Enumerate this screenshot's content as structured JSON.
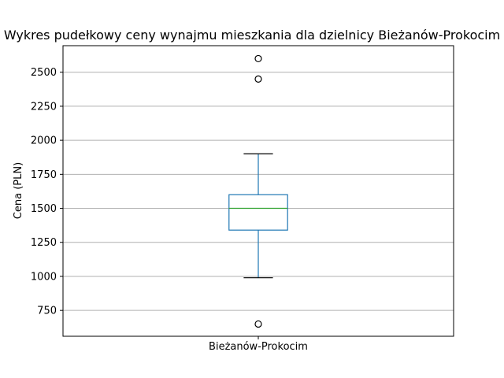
{
  "chart_data": {
    "type": "box",
    "title": "Wykres pudełkowy ceny wynajmu mieszkania dla dzielnicy  Bieżanów-Prokocim",
    "xlabel": "",
    "ylabel": "Cena (PLN)",
    "categories": [
      "Bieżanów-Prokocim"
    ],
    "boxes": [
      {
        "category": "Bieżanów-Prokocim",
        "whisker_low": 990,
        "q1": 1340,
        "median": 1500,
        "q3": 1600,
        "whisker_high": 1900,
        "outliers": [
          650,
          2450,
          2600
        ]
      }
    ],
    "ylim": [
      560,
      2695
    ],
    "yticks": [
      750,
      1000,
      1250,
      1500,
      1750,
      2000,
      2250,
      2500
    ],
    "grid": "y",
    "colors": {
      "box": "#1f77b4",
      "whisker": "#1f77b4",
      "cap": "#000000",
      "median": "#2ca02c",
      "grid": "#b0b0b0"
    }
  }
}
